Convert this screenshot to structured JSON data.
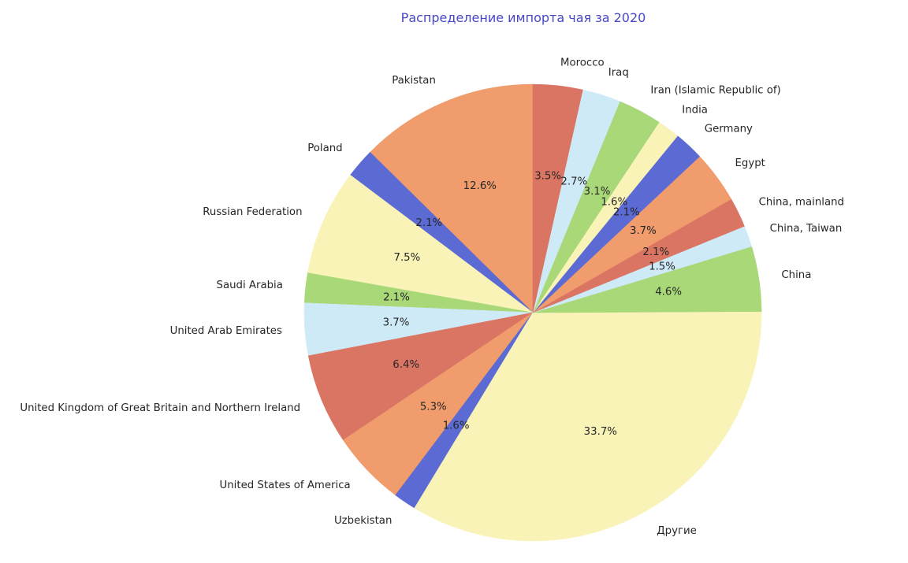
{
  "chart_data": {
    "type": "pie",
    "title": "Распределение импорта чая за 2020",
    "title_color": "#4646c7",
    "text_color": "#262626",
    "background_color": "#ffffff",
    "startangle": 90,
    "counterclock": true,
    "labeldistance": 1.1,
    "pctdistance": 0.6,
    "autopct_format": "one-decimal-percent",
    "legend_position": "none",
    "grid": false,
    "palette": [
      "#F09C6C",
      "#5C6BD3",
      "#F9F3B8",
      "#A8D877",
      "#CFEAF7",
      "#DB7563"
    ],
    "slices": [
      {
        "label": "Pakistan",
        "value": 12.6,
        "pct_label": "12.6%",
        "color": "#F09C6C"
      },
      {
        "label": "Poland",
        "value": 2.1,
        "pct_label": "2.1%",
        "color": "#5C6BD3"
      },
      {
        "label": "Russian Federation",
        "value": 7.5,
        "pct_label": "7.5%",
        "color": "#F9F3B8"
      },
      {
        "label": "Saudi Arabia",
        "value": 2.1,
        "pct_label": "2.1%",
        "color": "#A8D877"
      },
      {
        "label": "United Arab Emirates",
        "value": 3.7,
        "pct_label": "3.7%",
        "color": "#CFEAF7"
      },
      {
        "label": "United Kingdom of Great Britain and Northern Ireland",
        "value": 6.4,
        "pct_label": "6.4%",
        "color": "#DB7563"
      },
      {
        "label": "United States of America",
        "value": 5.3,
        "pct_label": "5.3%",
        "color": "#F09C6C"
      },
      {
        "label": "Uzbekistan",
        "value": 1.6,
        "pct_label": "1.6%",
        "color": "#5C6BD3"
      },
      {
        "label": "Другие",
        "value": 33.7,
        "pct_label": "33.7%",
        "color": "#F9F3B8"
      },
      {
        "label": "China",
        "value": 4.6,
        "pct_label": "4.6%",
        "color": "#A8D877"
      },
      {
        "label": "China, Taiwan",
        "value": 1.5,
        "pct_label": "1.5%",
        "color": "#CFEAF7"
      },
      {
        "label": "China, mainland",
        "value": 2.1,
        "pct_label": "2.1%",
        "color": "#DB7563"
      },
      {
        "label": "Egypt",
        "value": 3.7,
        "pct_label": "3.7%",
        "color": "#F09C6C"
      },
      {
        "label": "Germany",
        "value": 2.1,
        "pct_label": "2.1%",
        "color": "#5C6BD3"
      },
      {
        "label": "India",
        "value": 1.6,
        "pct_label": "1.6%",
        "color": "#F9F3B8"
      },
      {
        "label": "Iran (Islamic Republic of)",
        "value": 3.1,
        "pct_label": "3.1%",
        "color": "#A8D877"
      },
      {
        "label": "Iraq",
        "value": 2.7,
        "pct_label": "2.7%",
        "color": "#CFEAF7"
      },
      {
        "label": "Morocco",
        "value": 3.5,
        "pct_label": "3.5%",
        "color": "#DB7563"
      }
    ]
  }
}
